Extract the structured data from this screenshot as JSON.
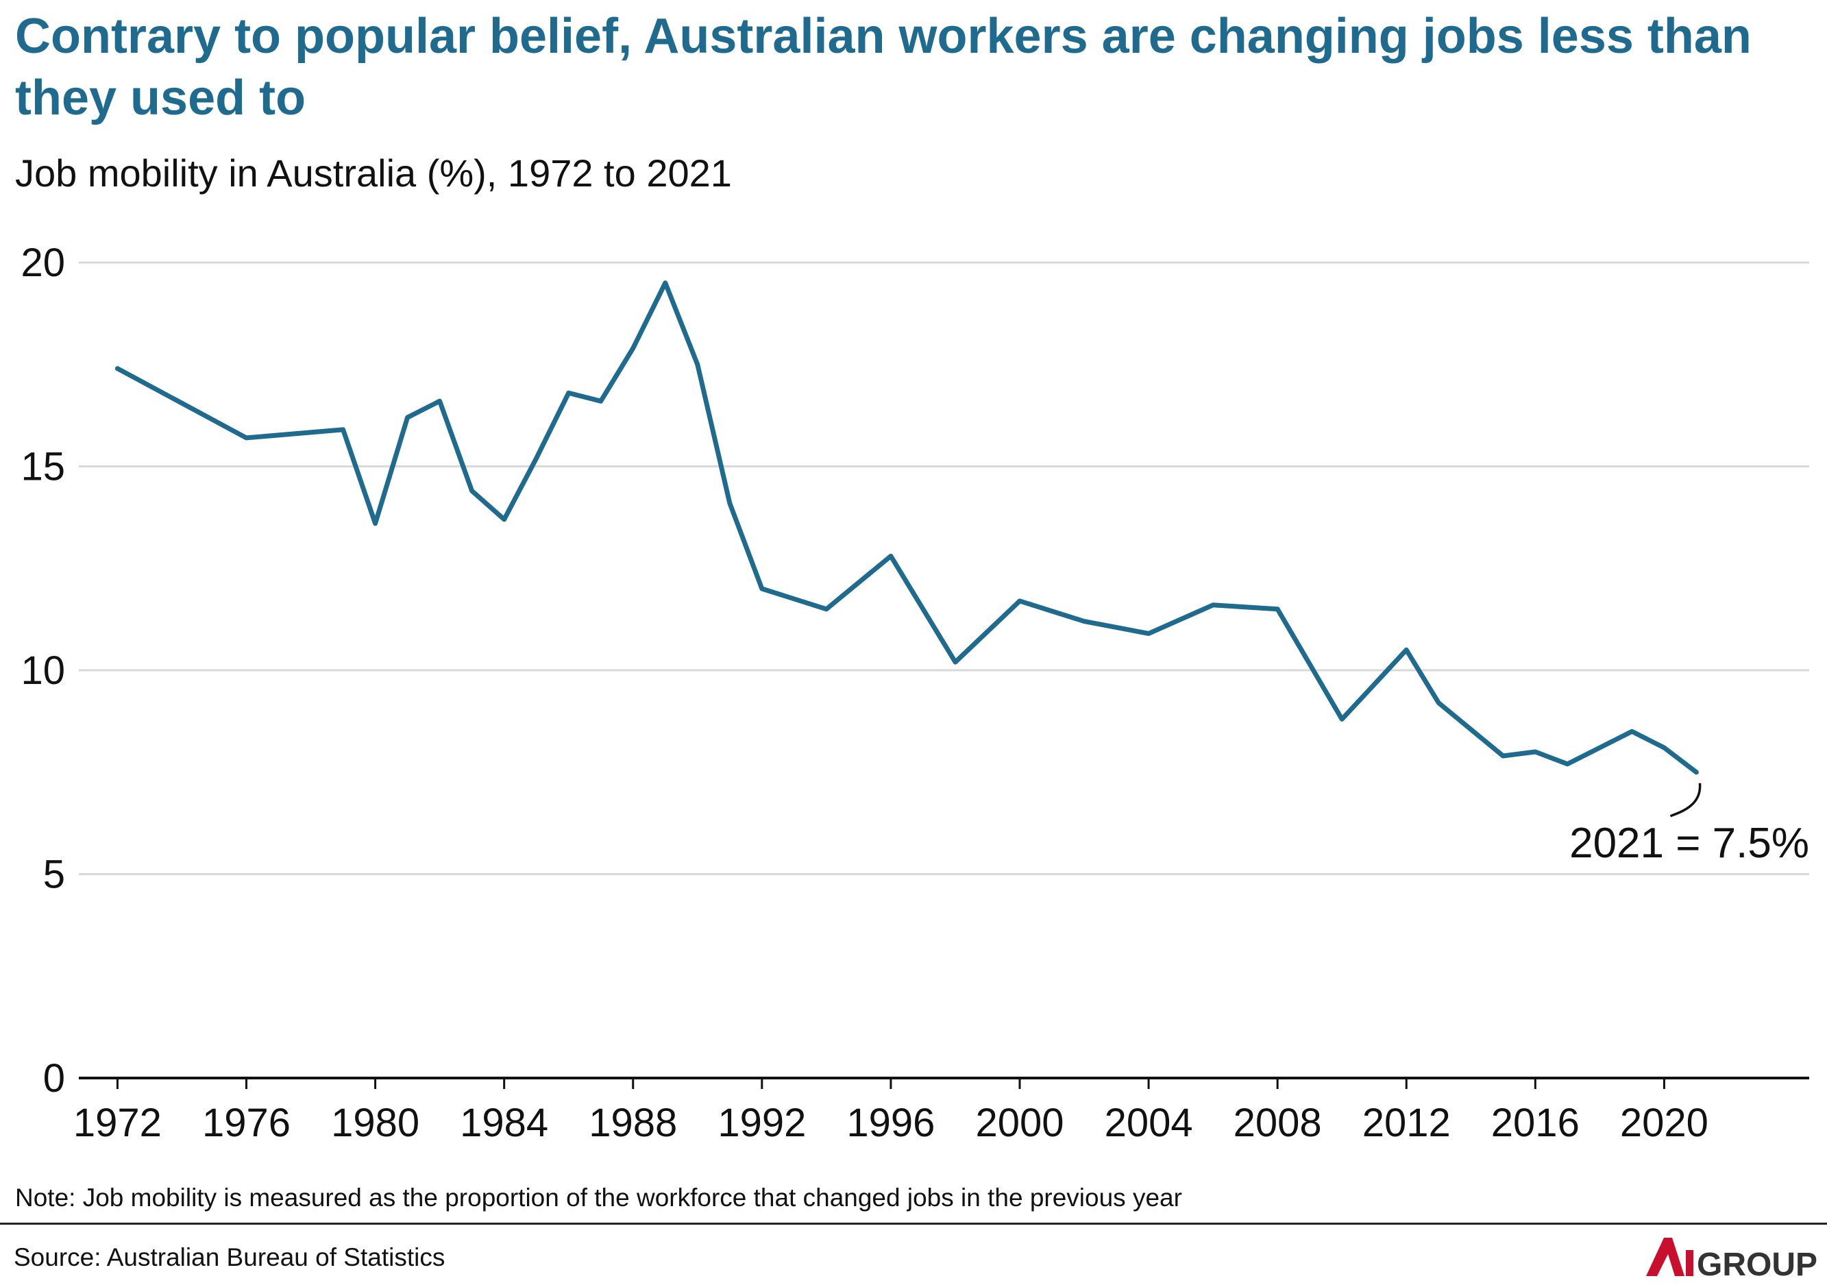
{
  "header": {
    "title": "Contrary to popular belief, Australian workers are changing jobs less than they used to",
    "subtitle": "Job mobility in Australia (%), 1972 to 2021"
  },
  "chart_data": {
    "type": "line",
    "title": "Contrary to popular belief, Australian workers are changing jobs less than they used to",
    "subtitle": "Job mobility in Australia (%), 1972 to 2021",
    "xlabel": "",
    "ylabel": "",
    "ylim": [
      0,
      20
    ],
    "xlim": [
      1970.8,
      2024.5
    ],
    "yticks": [
      0,
      5,
      10,
      15,
      20
    ],
    "xticks": [
      1972,
      1976,
      1980,
      1984,
      1988,
      1992,
      1996,
      2000,
      2004,
      2008,
      2012,
      2016,
      2020
    ],
    "grid": "horizontal",
    "legend": "none",
    "series": [
      {
        "x": [
          1972,
          1976,
          1979,
          1980,
          1981,
          1982,
          1983,
          1984,
          1985,
          1986,
          1987,
          1988,
          1989,
          1990,
          1991,
          1992,
          1994,
          1996,
          1998,
          2000,
          2002,
          2004,
          2006,
          2008,
          2010,
          2012,
          2013,
          2015,
          2016,
          2017,
          2019,
          2020,
          2021
        ],
        "values": [
          17.4,
          15.7,
          15.9,
          13.6,
          16.2,
          16.6,
          14.4,
          13.7,
          15.2,
          16.8,
          16.6,
          17.9,
          19.5,
          17.5,
          14.1,
          12.0,
          11.5,
          12.8,
          10.2,
          11.7,
          11.2,
          10.9,
          11.6,
          11.5,
          8.8,
          10.5,
          9.2,
          7.9,
          8.0,
          7.7,
          8.5,
          8.1,
          7.5
        ]
      }
    ],
    "annotation": "2021 = 7.5%",
    "colors": {
      "line": "#1f6b8f",
      "grid": "#d9d9d9",
      "axis": "#111111"
    }
  },
  "footer": {
    "note": "Note: Job mobility is measured as the proportion of the workforce that changed jobs in the previous year",
    "source": "Source: Australian Bureau of Statistics",
    "logo_text": "AiGROUP",
    "logo_icon": "ai-group-logo"
  }
}
